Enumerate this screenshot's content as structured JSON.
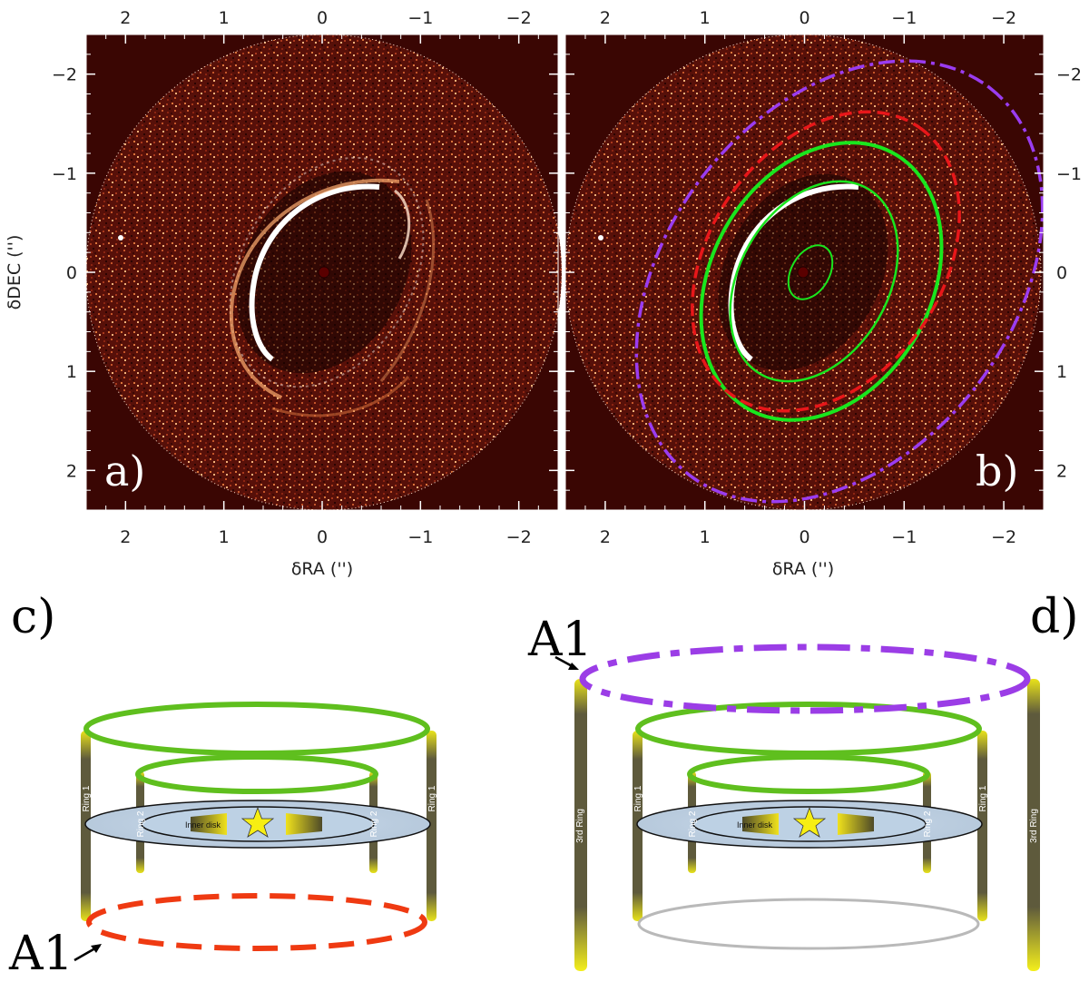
{
  "figure": {
    "axis_tick_labels": [
      "2",
      "1",
      "0",
      "−1",
      "−2"
    ],
    "x_axis_label": "δRA ('')",
    "y_axis_label": "δDEC ('')",
    "x_range": [
      2.4,
      -2.4
    ],
    "y_range": [
      -2.4,
      2.4
    ],
    "x_ticks": [
      2,
      1,
      0,
      -1,
      -2
    ],
    "y_ticks": [
      -2,
      -1,
      0,
      1,
      2
    ]
  },
  "panel_a": {
    "label": "a)"
  },
  "panel_b": {
    "label": "b)",
    "overlay_colors": {
      "green_ring": "#19e61e",
      "red_dashed": "#e8171a",
      "purple_dashdot": "#9a3cf0"
    }
  },
  "panel_c": {
    "label": "c)",
    "ring1_label": "Ring 1",
    "ring2_label": "Ring 2",
    "inner_disk_label": "Inner disk",
    "a1_label": "A1"
  },
  "panel_d": {
    "label": "d)",
    "ring1_label": "Ring 1",
    "ring2_label": "Ring 2",
    "ring3_label": "3rd Ring",
    "inner_disk_label": "Inner disk",
    "a1_label": "A1"
  },
  "colors": {
    "image_background": "#3a0603",
    "green": "#5fbf1e",
    "red_dashed": "#ef3a12",
    "purple": "#9b3de6",
    "star": "#f7ee13"
  }
}
